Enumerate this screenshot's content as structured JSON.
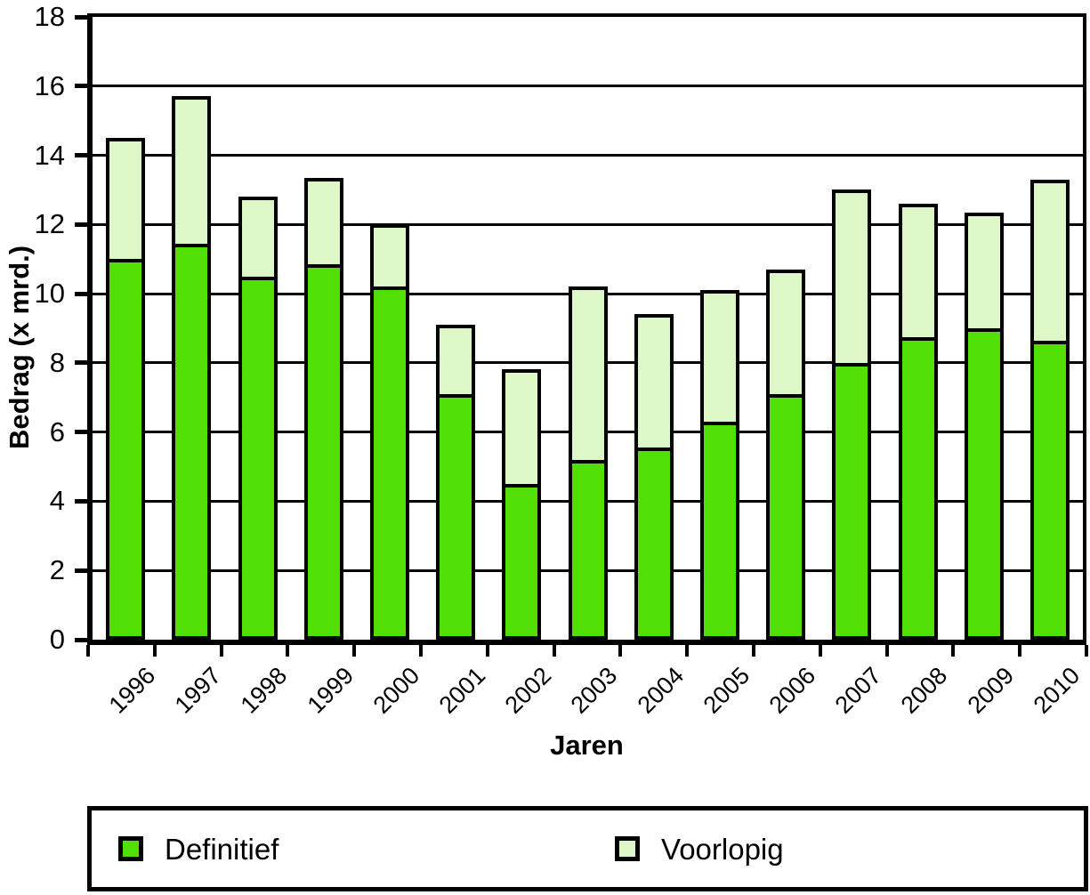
{
  "figure": {
    "background": "#ffffff",
    "frame_color": "#000000"
  },
  "chart_data": {
    "type": "bar",
    "stacked": true,
    "title": "",
    "xlabel": "Jaren",
    "ylabel": "Bedrag (x mrd.)",
    "categories": [
      "1996",
      "1997",
      "1998",
      "1999",
      "2000",
      "2001",
      "2002",
      "2003",
      "2004",
      "2005",
      "2006",
      "2007",
      "2008",
      "2009",
      "2010"
    ],
    "series": [
      {
        "name": "Definitief",
        "color": "#52df05",
        "values": [
          10.9,
          11.35,
          10.4,
          10.75,
          10.1,
          7.0,
          4.4,
          5.1,
          5.45,
          6.2,
          7.0,
          7.9,
          8.65,
          8.9,
          8.55
        ]
      },
      {
        "name": "Voorlopig",
        "color": "#ddf7c7",
        "values": [
          3.4,
          4.15,
          2.2,
          2.4,
          1.7,
          1.9,
          3.2,
          4.9,
          3.75,
          3.7,
          3.5,
          4.9,
          3.75,
          3.25,
          4.55
        ]
      }
    ],
    "stack_totals": [
      14.3,
      15.5,
      12.6,
      13.15,
      11.8,
      8.9,
      7.6,
      10.0,
      9.2,
      9.9,
      10.5,
      12.8,
      12.4,
      12.15,
      13.1
    ],
    "ylim": [
      0,
      18
    ],
    "y_ticks": [
      0,
      2,
      4,
      6,
      8,
      10,
      12,
      14,
      16,
      18
    ],
    "grid": true,
    "gridline_color": "#000000",
    "legend_position": "bottom"
  },
  "legend": {
    "items": [
      {
        "label": "Definitief",
        "color": "#52df05"
      },
      {
        "label": "Voorlopig",
        "color": "#ddf7c7"
      }
    ]
  }
}
